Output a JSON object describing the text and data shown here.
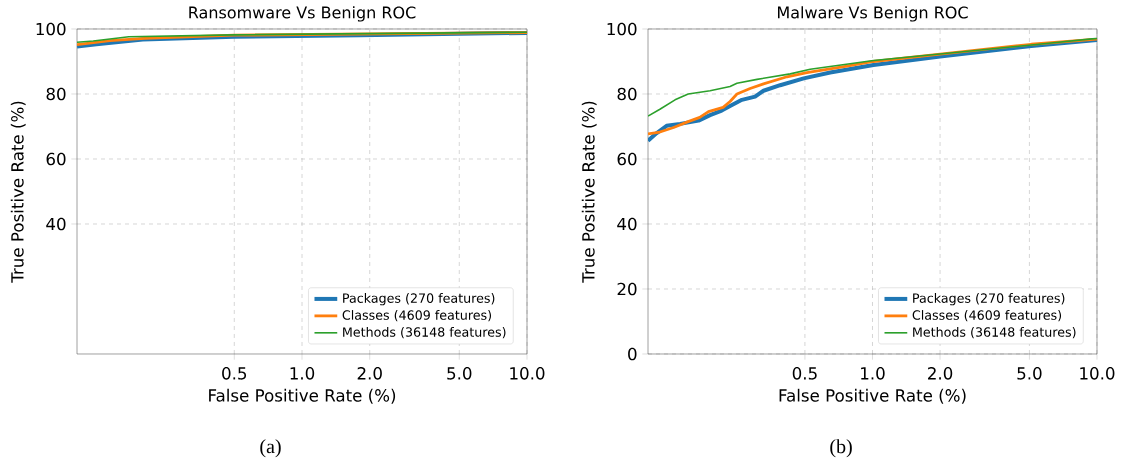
{
  "chart_data": [
    {
      "type": "line",
      "title": "Ransomware Vs Benign ROC",
      "xlabel": "False Positive Rate (%)",
      "ylabel": "True Positive Rate (%)",
      "log": "x",
      "grid": true,
      "legend": "bottom right",
      "xlim": [
        0.1,
        10
      ],
      "ylim": [
        0,
        100
      ],
      "xticks": [
        0.5,
        {
          "value": 1,
          "label": "1.0"
        },
        {
          "value": 2,
          "label": "2.0"
        },
        {
          "value": 5,
          "label": "5.0"
        },
        {
          "value": 10,
          "label": "10.0"
        }
      ],
      "yticks": [
        40,
        60,
        80,
        100
      ],
      "annotations": [
        "(a)"
      ],
      "series": [
        {
          "name": "Packages (270 features)",
          "color": "#1f77b4",
          "x": [
            0.1,
            0.122,
            0.196,
            0.5,
            1.8,
            10
          ],
          "values": [
            94.6,
            95.3,
            96.8,
            97.6,
            98.1,
            98.8
          ]
        },
        {
          "name": "Classes (4609 features)",
          "color": "#ff7f0e",
          "x": [
            0.1,
            0.14,
            0.2,
            0.5,
            10
          ],
          "values": [
            95.2,
            96.4,
            97.1,
            98.1,
            98.9
          ]
        },
        {
          "name": "Methods (36148 features)",
          "color": "#2ca02c",
          "x": [
            0.1,
            0.118,
            0.17,
            0.5,
            10
          ],
          "values": [
            95.9,
            96.3,
            97.6,
            98.2,
            99.0
          ]
        }
      ]
    },
    {
      "type": "line",
      "title": "Malware Vs Benign ROC",
      "xlabel": "False Positive Rate (%)",
      "ylabel": "True Positive Rate (%)",
      "log": "x",
      "grid": true,
      "legend": "bottom right",
      "xlim": [
        0.1,
        10
      ],
      "ylim": [
        0,
        100
      ],
      "xticks": [
        0.5,
        {
          "value": 1,
          "label": "1.0"
        },
        {
          "value": 2,
          "label": "2.0"
        },
        {
          "value": 5,
          "label": "5.0"
        },
        {
          "value": 10,
          "label": "10.0"
        }
      ],
      "yticks": [
        0,
        20,
        40,
        60,
        80,
        100
      ],
      "annotations": [
        "(b)"
      ],
      "series": [
        {
          "name": "Packages (270 features)",
          "color": "#1f77b4",
          "x": [
            0.1,
            0.109,
            0.121,
            0.139,
            0.168,
            0.189,
            0.213,
            0.232,
            0.262,
            0.3,
            0.327,
            0.388,
            0.494,
            0.648,
            1.01,
            2.0,
            5.1,
            10
          ],
          "values": [
            65.6,
            67.9,
            70.2,
            70.8,
            71.8,
            73.5,
            74.9,
            76.3,
            78.2,
            79.2,
            81.0,
            82.7,
            84.8,
            86.6,
            88.9,
            91.5,
            94.8,
            96.6
          ]
        },
        {
          "name": "Classes (4609 features)",
          "color": "#ff7f0e",
          "x": [
            0.1,
            0.113,
            0.13,
            0.151,
            0.17,
            0.186,
            0.216,
            0.232,
            0.249,
            0.285,
            0.327,
            0.416,
            0.51,
            0.77,
            1.01,
            2.0,
            5.1,
            10
          ],
          "values": [
            67.7,
            68.3,
            69.7,
            71.5,
            72.8,
            74.6,
            75.9,
            77.7,
            80.0,
            81.7,
            83.1,
            85.3,
            86.6,
            88.6,
            90.0,
            92.3,
            95.3,
            96.9
          ]
        },
        {
          "name": "Methods (36148 features)",
          "color": "#2ca02c",
          "x": [
            0.1,
            0.113,
            0.132,
            0.151,
            0.189,
            0.232,
            0.249,
            0.306,
            0.43,
            0.528,
            1.01,
            2.0,
            5.1,
            10
          ],
          "values": [
            73.2,
            75.3,
            78.2,
            80.0,
            81.0,
            82.3,
            83.3,
            84.5,
            86.2,
            87.6,
            90.3,
            92.3,
            95.1,
            97.1
          ]
        }
      ]
    }
  ]
}
